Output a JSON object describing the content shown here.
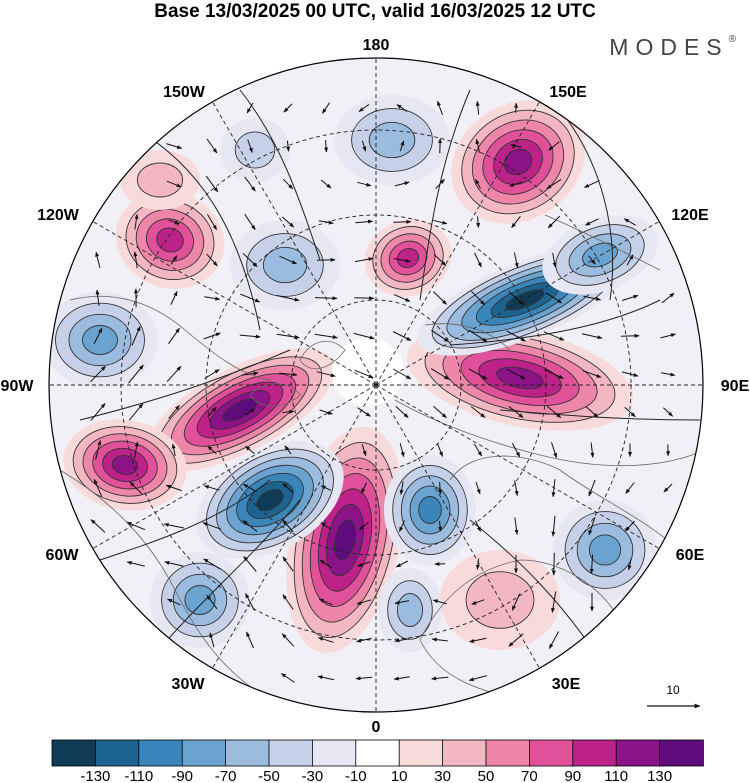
{
  "title": "Base 13/03/2025 00 UTC, valid 16/03/2025 12 UTC",
  "brand": "MODES",
  "brand_mark": "®",
  "longitude_labels": [
    "180",
    "150E",
    "120E",
    "90E",
    "60E",
    "30E",
    "0",
    "30W",
    "60W",
    "90W",
    "120W",
    "150W"
  ],
  "vector_reference": {
    "label": "10"
  },
  "colorbar": {
    "colors": [
      "#103b57",
      "#1c6390",
      "#3a86bb",
      "#6aa3cf",
      "#9bbcde",
      "#c6d0e8",
      "#e7e7f3",
      "#ffffff",
      "#f9dada",
      "#f3b7c3",
      "#ee86aa",
      "#e0519a",
      "#bd2289",
      "#8c1288",
      "#5e0c7c"
    ],
    "tick_labels": [
      "-130",
      "-110",
      "-90",
      "-70",
      "-50",
      "-30",
      "-10",
      "10",
      "30",
      "50",
      "70",
      "90",
      "110",
      "130"
    ]
  },
  "map_style": {
    "ocean_background": "#ffffff",
    "graticule_color": "#222222",
    "land_outline_color": "#666666"
  }
}
